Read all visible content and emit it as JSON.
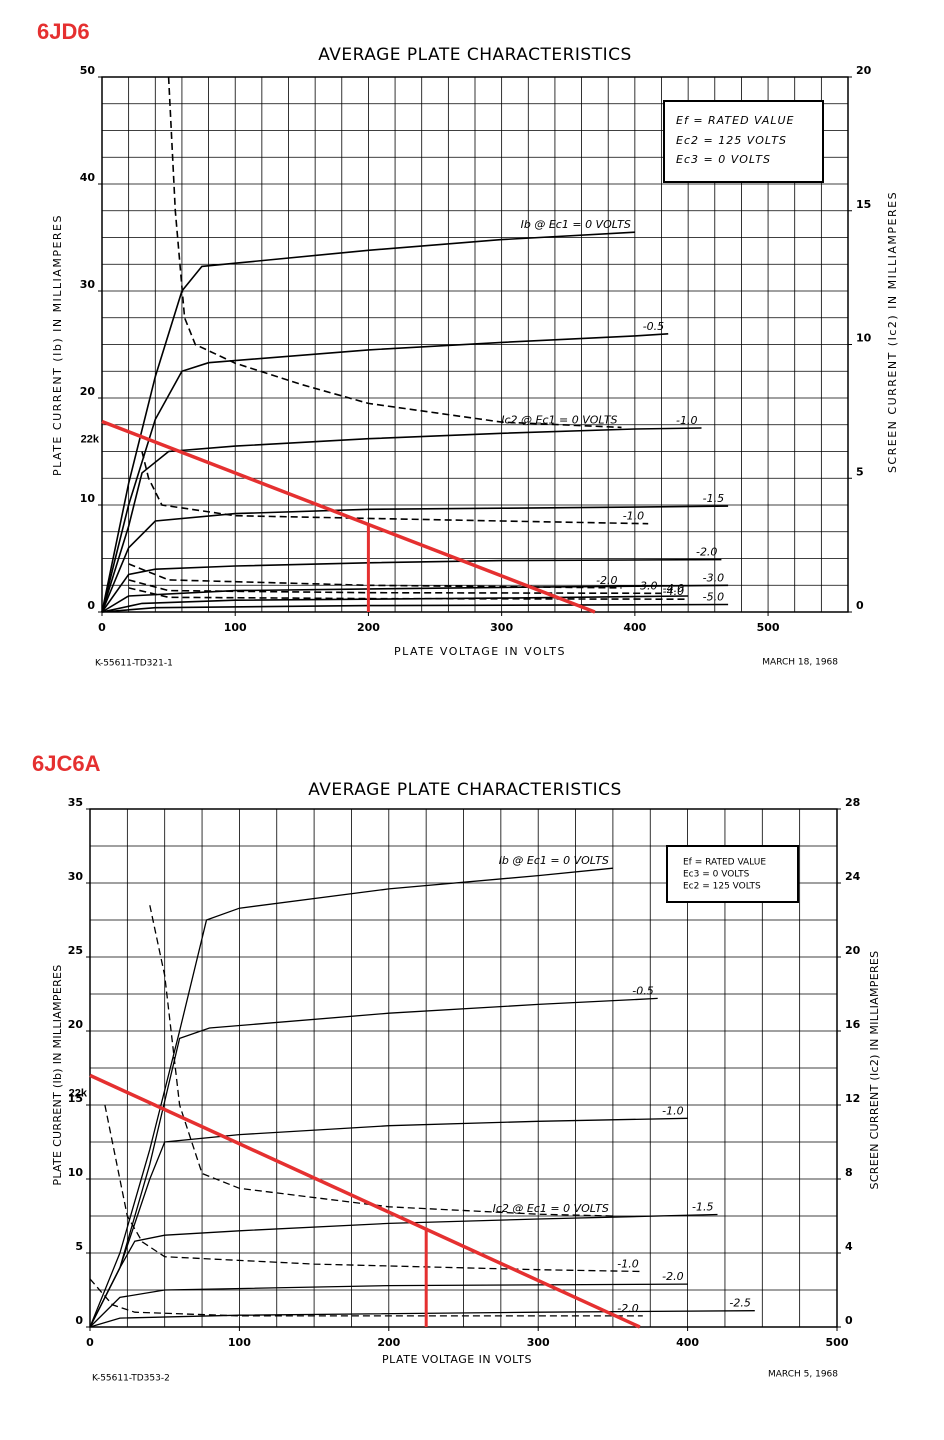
{
  "chart_data": [
    {
      "type": "line",
      "heading": "6JD6",
      "title": "AVERAGE PLATE CHARACTERISTICS",
      "xlabel": "PLATE VOLTAGE IN VOLTS",
      "ylabel": "PLATE CURRENT (Ib) IN MILLIAMPERES",
      "y2label": "SCREEN CURRENT (Ic2) IN MILLIAMPERES",
      "xlim": [
        0,
        560
      ],
      "xticks": [
        0,
        100,
        200,
        300,
        400,
        500
      ],
      "ylim": [
        0,
        50
      ],
      "yticks": [
        0,
        10,
        20,
        30,
        40,
        50
      ],
      "y2lim": [
        0,
        20
      ],
      "y2ticks": [
        0,
        5,
        10,
        15,
        20
      ],
      "grid": true,
      "x_grid_step": 20,
      "y_grid_step": 2.5,
      "conditions": [
        "Ef = RATED VALUE",
        "Ec2 = 125 VOLTS",
        "Ec3 = 0 VOLTS"
      ],
      "drawing_number": "K-55611-TD321-1",
      "date": "MARCH 18, 1968",
      "series": [
        {
          "name": "Ib @ Ec1 = 0 VOLTS",
          "color": "#000000",
          "x": [
            0,
            20,
            40,
            60,
            75,
            100,
            200,
            300,
            400
          ],
          "values": [
            0,
            12,
            22,
            30,
            32.3,
            32.6,
            33.8,
            34.8,
            35.5
          ]
        },
        {
          "name": "-0.5",
          "color": "#000000",
          "x": [
            0,
            20,
            40,
            60,
            80,
            200,
            300,
            400,
            425
          ],
          "values": [
            0,
            10,
            18,
            22.5,
            23.3,
            24.5,
            25.2,
            25.8,
            26
          ]
        },
        {
          "name": "-1.0",
          "color": "#000000",
          "x": [
            0,
            20,
            30,
            50,
            100,
            200,
            300,
            400,
            450
          ],
          "values": [
            0,
            8,
            13,
            15,
            15.5,
            16.2,
            16.7,
            17.1,
            17.2
          ]
        },
        {
          "name": "-1.5",
          "color": "#000000",
          "x": [
            0,
            20,
            40,
            100,
            200,
            300,
            400,
            470
          ],
          "values": [
            0,
            6,
            8.5,
            9.2,
            9.6,
            9.7,
            9.8,
            9.9
          ]
        },
        {
          "name": "-2.0",
          "color": "#000000",
          "x": [
            0,
            20,
            40,
            100,
            200,
            300,
            465
          ],
          "values": [
            0,
            3.5,
            4,
            4.3,
            4.6,
            4.8,
            4.9
          ]
        },
        {
          "name": "-3.0",
          "color": "#000000",
          "x": [
            0,
            20,
            100,
            300,
            470
          ],
          "values": [
            0,
            1.5,
            2,
            2.3,
            2.5
          ]
        },
        {
          "name": "-4.0",
          "color": "#000000",
          "x": [
            0,
            30,
            100,
            300,
            440
          ],
          "values": [
            0,
            0.8,
            1.1,
            1.3,
            1.5
          ]
        },
        {
          "name": "-5.0",
          "color": "#000000",
          "x": [
            0,
            40,
            200,
            470
          ],
          "values": [
            0,
            0.4,
            0.6,
            0.7
          ]
        },
        {
          "name": "Ic2 @ Ec1 = 0 VOLTS",
          "axis": "y2",
          "dash": true,
          "color": "#000000",
          "x": [
            50,
            55,
            62,
            70,
            100,
            150,
            200,
            300,
            390
          ],
          "values": [
            20,
            15,
            11,
            10,
            9.3,
            8.5,
            7.8,
            7.1,
            6.9
          ]
        },
        {
          "name": "-1.0",
          "axis": "y2",
          "dash": true,
          "color": "#000000",
          "x": [
            30,
            35,
            45,
            100,
            200,
            300,
            410
          ],
          "values": [
            6,
            5,
            4,
            3.6,
            3.5,
            3.4,
            3.3
          ]
        },
        {
          "name": "-2.0",
          "axis": "y2",
          "dash": true,
          "color": "#000000",
          "x": [
            20,
            50,
            200,
            390
          ],
          "values": [
            1.8,
            1.2,
            1,
            0.9
          ]
        },
        {
          "name": "-3.0",
          "axis": "y2",
          "dash": true,
          "color": "#000000",
          "x": [
            20,
            50,
            200,
            420
          ],
          "values": [
            1.2,
            0.8,
            0.72,
            0.7
          ]
        },
        {
          "name": "-4.0",
          "axis": "y2",
          "dash": true,
          "color": "#000000",
          "x": [
            20,
            50,
            200,
            440
          ],
          "values": [
            0.9,
            0.55,
            0.5,
            0.48
          ]
        }
      ],
      "load_line": {
        "name": "22k",
        "color": "#e53030",
        "x": [
          0,
          370
        ],
        "values": [
          17.8,
          0
        ]
      },
      "operating_point": {
        "color": "#e53030",
        "x": [
          200,
          200
        ],
        "values": [
          0,
          8.1
        ]
      }
    },
    {
      "type": "line",
      "heading": "6JC6A",
      "title": "AVERAGE PLATE CHARACTERISTICS",
      "xlabel": "PLATE VOLTAGE IN VOLTS",
      "ylabel": "PLATE CURRENT (Ib) IN MILLIAMPERES",
      "y2label": "SCREEN CURRENT (Ic2) IN MILLIAMPERES",
      "xlim": [
        0,
        500
      ],
      "xticks": [
        0,
        100,
        200,
        300,
        400,
        500
      ],
      "ylim": [
        0,
        35
      ],
      "yticks": [
        0,
        5,
        10,
        15,
        20,
        25,
        30,
        35
      ],
      "y2lim": [
        0,
        28
      ],
      "y2ticks": [
        0,
        4,
        8,
        12,
        16,
        20,
        24,
        28
      ],
      "grid": true,
      "x_grid_step": 25,
      "y_grid_step": 2.5,
      "conditions": [
        "Ef = RATED VALUE",
        "Ec3 = 0 VOLTS",
        "Ec2 = 125 VOLTS"
      ],
      "drawing_number": "K-55611-TD353-2",
      "date": "MARCH 5, 1968",
      "series": [
        {
          "name": "Ib @ Ec1 = 0 VOLTS",
          "color": "#000000",
          "x": [
            0,
            20,
            40,
            60,
            78,
            100,
            200,
            300,
            350
          ],
          "values": [
            0,
            5,
            12,
            20,
            27.5,
            28.3,
            29.6,
            30.5,
            31
          ]
        },
        {
          "name": "-0.5",
          "color": "#000000",
          "x": [
            0,
            20,
            40,
            60,
            80,
            200,
            300,
            380
          ],
          "values": [
            0,
            4,
            11,
            19.5,
            20.2,
            21.2,
            21.8,
            22.2
          ]
        },
        {
          "name": "-1.0",
          "color": "#000000",
          "x": [
            0,
            20,
            40,
            50,
            100,
            200,
            300,
            400
          ],
          "values": [
            0,
            4,
            10,
            12.5,
            13,
            13.6,
            13.9,
            14.1
          ]
        },
        {
          "name": "-1.5",
          "color": "#000000",
          "x": [
            0,
            20,
            30,
            50,
            100,
            200,
            300,
            420
          ],
          "values": [
            0,
            4,
            5.8,
            6.2,
            6.5,
            7,
            7.3,
            7.6
          ]
        },
        {
          "name": "-2.0",
          "color": "#000000",
          "x": [
            0,
            20,
            50,
            200,
            400
          ],
          "values": [
            0,
            2,
            2.5,
            2.8,
            2.9
          ]
        },
        {
          "name": "-2.5",
          "color": "#000000",
          "x": [
            0,
            20,
            100,
            300,
            445
          ],
          "values": [
            0,
            0.6,
            0.8,
            1,
            1.1
          ]
        },
        {
          "name": "Ic2 @ Ec1 = 0 VOLTS",
          "axis": "y2",
          "dash": true,
          "color": "#000000",
          "x": [
            40,
            50,
            60,
            75,
            100,
            200,
            300,
            350
          ],
          "values": [
            22.8,
            19,
            12,
            8.3,
            7.5,
            6.5,
            6.1,
            6
          ]
        },
        {
          "name": "-1.0",
          "axis": "y2",
          "dash": true,
          "color": "#000000",
          "x": [
            10,
            25,
            35,
            50,
            150,
            300,
            370
          ],
          "values": [
            12,
            6,
            4.6,
            3.8,
            3.4,
            3.1,
            3
          ]
        },
        {
          "name": "-2.0",
          "axis": "y2",
          "dash": true,
          "color": "#000000",
          "x": [
            0,
            15,
            30,
            100,
            250,
            370
          ],
          "values": [
            2.6,
            1.2,
            0.8,
            0.6,
            0.6,
            0.6
          ]
        }
      ],
      "load_line": {
        "name": "22k",
        "color": "#e53030",
        "x": [
          0,
          368
        ],
        "values": [
          17,
          0
        ]
      },
      "operating_point": {
        "color": "#e53030",
        "x": [
          225,
          225
        ],
        "values": [
          0,
          6.7
        ]
      }
    }
  ]
}
